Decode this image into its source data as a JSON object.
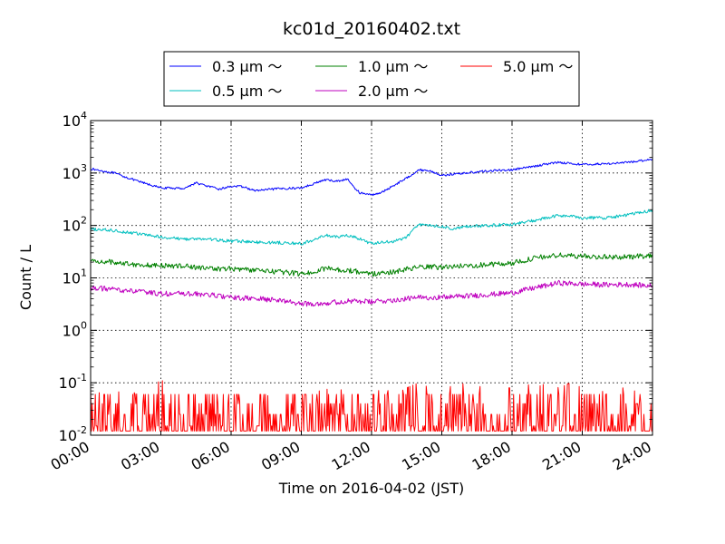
{
  "chart_data": {
    "type": "line",
    "title": "kc01d_20160402.txt",
    "xlabel": "Time on 2016-04-02 (JST)",
    "ylabel": "Count / L",
    "y_scale": "log",
    "xlim": [
      0,
      24
    ],
    "ylim": [
      0.01,
      10000
    ],
    "x_unit": "hours",
    "grid": true,
    "legend_position": "top-center",
    "x_ticks": [
      {
        "value": 0,
        "label": "00:00"
      },
      {
        "value": 3,
        "label": "03:00"
      },
      {
        "value": 6,
        "label": "06:00"
      },
      {
        "value": 9,
        "label": "09:00"
      },
      {
        "value": 12,
        "label": "12:00"
      },
      {
        "value": 15,
        "label": "15:00"
      },
      {
        "value": 18,
        "label": "18:00"
      },
      {
        "value": 21,
        "label": "21:00"
      },
      {
        "value": 24,
        "label": "24:00"
      }
    ],
    "y_ticks": [
      {
        "value": 0.01,
        "base": "10",
        "exp": "-2"
      },
      {
        "value": 0.1,
        "base": "10",
        "exp": "-1"
      },
      {
        "value": 1,
        "base": "10",
        "exp": "0"
      },
      {
        "value": 10,
        "base": "10",
        "exp": "1"
      },
      {
        "value": 100,
        "base": "10",
        "exp": "2"
      },
      {
        "value": 1000,
        "base": "10",
        "exp": "3"
      },
      {
        "value": 10000,
        "base": "10",
        "exp": "4"
      }
    ],
    "series": [
      {
        "name": "0.3 μm ～",
        "color": "#0000ff",
        "x": [
          0,
          1,
          2,
          3,
          4,
          4.5,
          5,
          5.5,
          6,
          6.5,
          7,
          7.5,
          8,
          8.5,
          9,
          9.5,
          10,
          10.5,
          11,
          11.2,
          11.5,
          12,
          12.5,
          13,
          13.5,
          14,
          14.5,
          15,
          15.5,
          16,
          17,
          18,
          19,
          19.5,
          20,
          21,
          22,
          23,
          24
        ],
        "y": [
          1200,
          1000,
          700,
          520,
          510,
          650,
          560,
          490,
          560,
          550,
          460,
          480,
          500,
          510,
          520,
          620,
          740,
          700,
          760,
          560,
          420,
          380,
          440,
          600,
          800,
          1150,
          1100,
          900,
          950,
          1000,
          1100,
          1150,
          1350,
          1500,
          1600,
          1450,
          1500,
          1600,
          1850
        ]
      },
      {
        "name": "0.5 μm ～",
        "color": "#00bfbf",
        "x": [
          0,
          1,
          2,
          3,
          4,
          5,
          6,
          6.5,
          7,
          8,
          9,
          9.5,
          10,
          10.5,
          11,
          11.5,
          12,
          13,
          13.5,
          14,
          14.5,
          15,
          15.5,
          16,
          17,
          18,
          19,
          20,
          20.5,
          21,
          22,
          23,
          24
        ],
        "y": [
          85,
          80,
          70,
          60,
          55,
          55,
          50,
          50,
          48,
          47,
          45,
          52,
          65,
          60,
          65,
          55,
          45,
          50,
          60,
          105,
          100,
          95,
          85,
          95,
          100,
          105,
          125,
          155,
          150,
          140,
          140,
          160,
          195
        ]
      },
      {
        "name": "2.0 μm ～",
        "color": "#bf00bf",
        "x": [
          0,
          1,
          2,
          3,
          4,
          5,
          6,
          7,
          8,
          9,
          10,
          11,
          12,
          13,
          14,
          15,
          16,
          17,
          18,
          19,
          20,
          21,
          22,
          23,
          24
        ],
        "y": [
          6.5,
          6,
          5.5,
          5,
          5,
          4.8,
          4.2,
          4,
          3.8,
          3.2,
          3.3,
          3.6,
          3.5,
          3.8,
          4.2,
          4.3,
          4.5,
          4.8,
          5.2,
          6.5,
          8,
          7.6,
          7.4,
          7.5,
          7
        ]
      },
      {
        "name": "1.0 μm ～",
        "color": "#008000",
        "x": [
          0,
          1,
          2,
          3,
          4,
          5,
          6,
          7,
          8,
          9,
          9.5,
          10,
          11,
          12,
          13,
          14,
          15,
          16,
          17,
          18,
          19,
          20,
          21,
          22,
          23,
          24
        ],
        "y": [
          21,
          20,
          18,
          17,
          17,
          15,
          15,
          14,
          13,
          12,
          13,
          15,
          14,
          12,
          13,
          16,
          16,
          17,
          18,
          19,
          24,
          27,
          26,
          25,
          25,
          27
        ]
      },
      {
        "name": "5.0 μm ～",
        "color": "#ff0000",
        "x": [
          0,
          0.5,
          1,
          1.5,
          2,
          2.5,
          3,
          3.5,
          4,
          4.5,
          5,
          5.5,
          6,
          6.5,
          7,
          7.5,
          8,
          8.5,
          9,
          9.5,
          10,
          10.5,
          11,
          11.5,
          12,
          12.5,
          13,
          13.5,
          14,
          14.5,
          15,
          15.5,
          16,
          16.5,
          17,
          17.5,
          18,
          18.5,
          19,
          19.5,
          20,
          20.5,
          21,
          21.5,
          22,
          22.5,
          23,
          23.5,
          24
        ],
        "y": [
          0.04,
          0.03,
          0.03,
          0.04,
          0.03,
          0.03,
          0.06,
          0.03,
          0.02,
          0.03,
          0.04,
          0.02,
          0.03,
          0.02,
          0.03,
          0.03,
          0.02,
          0.03,
          0.03,
          0.03,
          0.04,
          0.03,
          0.05,
          0.03,
          0.03,
          0.04,
          0.03,
          0.04,
          0.05,
          0.04,
          0.05,
          0.04,
          0.05,
          0.04,
          0.05,
          0.04,
          0.04,
          0.05,
          0.04,
          0.05,
          0.04,
          0.05,
          0.04,
          0.05,
          0.03,
          0.04,
          0.04,
          0.03,
          0.04
        ]
      }
    ],
    "legend_layout": [
      [
        "0.3 μm ～",
        "1.0 μm ～",
        "5.0 μm ～"
      ],
      [
        "0.5 μm ～",
        "2.0 μm ～"
      ]
    ]
  }
}
